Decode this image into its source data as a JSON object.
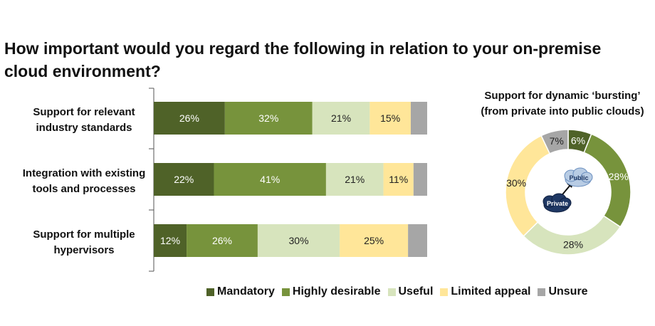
{
  "title_line1": "How important would you regard the following in relation to your on-premise",
  "title_line2": "cloud environment?",
  "colors": {
    "Mandatory": "#4f6228",
    "Highly desirable": "#77933c",
    "Useful": "#d7e4bd",
    "Limited appeal": "#ffe699",
    "Unsure": "#a6a6a6"
  },
  "chart_data": [
    {
      "type": "bar",
      "orientation": "horizontal",
      "stacked": true,
      "categories": [
        [
          "Support for relevant",
          "industry standards"
        ],
        [
          "Integration with existing",
          "tools and processes"
        ],
        [
          "Support for multiple",
          "hypervisors"
        ]
      ],
      "series": [
        {
          "name": "Mandatory",
          "values": [
            26,
            22,
            12
          ]
        },
        {
          "name": "Highly desirable",
          "values": [
            32,
            41,
            26
          ]
        },
        {
          "name": "Useful",
          "values": [
            21,
            21,
            30
          ]
        },
        {
          "name": "Limited appeal",
          "values": [
            15,
            11,
            25
          ]
        },
        {
          "name": "Unsure",
          "values": [
            6,
            5,
            7
          ]
        }
      ],
      "labels": [
        [
          "26%",
          "32%",
          "21%",
          "15%",
          ""
        ],
        [
          "22%",
          "41%",
          "21%",
          "11%",
          ""
        ],
        [
          "12%",
          "26%",
          "30%",
          "25%",
          ""
        ]
      ],
      "xlim": [
        0,
        100
      ],
      "legend": "bottom"
    },
    {
      "type": "pie",
      "donut": true,
      "title_line1": "Support for dynamic ‘bursting’",
      "title_line2": "(from private into public clouds)",
      "slices": [
        {
          "name": "Mandatory",
          "value": 6,
          "label": "6%"
        },
        {
          "name": "Highly desirable",
          "value": 28,
          "label": "28%"
        },
        {
          "name": "Useful",
          "value": 28,
          "label": "28%"
        },
        {
          "name": "Limited appeal",
          "value": 30,
          "label": "30%"
        },
        {
          "name": "Unsure",
          "value": 7,
          "label": "7%"
        }
      ],
      "center_icons": {
        "top_cloud": "Public",
        "bottom_cloud": "Private"
      }
    }
  ],
  "legend": {
    "items": [
      "Mandatory",
      "Highly desirable",
      "Useful",
      "Limited appeal",
      "Unsure"
    ]
  }
}
